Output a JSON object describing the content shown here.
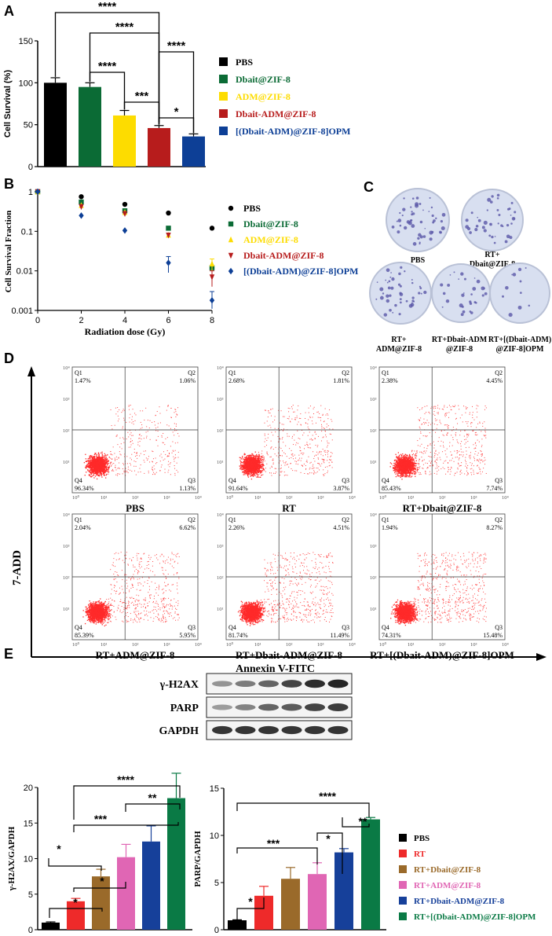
{
  "panels": {
    "a": {
      "label": "A"
    },
    "b": {
      "label": "B"
    },
    "c": {
      "label": "C"
    },
    "d": {
      "label": "D"
    },
    "e": {
      "label": "E"
    }
  },
  "chart_data": [
    {
      "id": "A",
      "type": "bar",
      "title": "",
      "ylabel": "Cell Survival (%)",
      "xlabel": "",
      "ylim": [
        0,
        150
      ],
      "yticks": [
        "0",
        "50",
        "100",
        "150"
      ],
      "categories": [
        "PBS",
        "Dbait@ZIF-8",
        "ADM@ZIF-8",
        "Dbait-ADM@ZIF-8",
        "[(Dbait-ADM)@ZIF-8]OPM"
      ],
      "values": [
        100,
        95,
        61,
        46,
        36
      ],
      "errors": [
        6,
        5,
        6,
        3,
        3
      ],
      "colors": [
        "#000000",
        "#0b6b35",
        "#fddc00",
        "#b71c1c",
        "#0d3f96"
      ],
      "legend": [
        {
          "label": "PBS",
          "color": "#000000",
          "text_color": "#000000"
        },
        {
          "label": "Dbait@ZIF-8",
          "color": "#0b6b35",
          "text_color": "#0b6b35"
        },
        {
          "label": "ADM@ZIF-8",
          "color": "#fddc00",
          "text_color": "#fddc00"
        },
        {
          "label": "Dbait-ADM@ZIF-8",
          "color": "#b71c1c",
          "text_color": "#b71c1c"
        },
        {
          "label": "[(Dbait-ADM)@ZIF-8]OPM",
          "color": "#0d3f96",
          "text_color": "#0d3f96"
        }
      ],
      "significance": [
        {
          "from": 0,
          "to": 3,
          "label": "****",
          "level": 1
        },
        {
          "from": 1,
          "to": 3,
          "label": "****",
          "level": 2
        },
        {
          "from": 3,
          "to": 4,
          "label": "****",
          "level": 3
        },
        {
          "from": 1,
          "to": 2,
          "label": "****",
          "level": 4
        },
        {
          "from": 2,
          "to": 3,
          "label": "***",
          "level": 5
        },
        {
          "from": 3,
          "to": 4,
          "label": "*",
          "level": 6
        }
      ]
    },
    {
      "id": "B",
      "type": "scatter",
      "xlabel": "Radiation dose (Gy)",
      "ylabel": "Cell Survival Fraction",
      "yscale": "log",
      "ylim": [
        0.001,
        1
      ],
      "xlim": [
        0,
        8
      ],
      "xticks": [
        "0",
        "2",
        "4",
        "6",
        "8"
      ],
      "yticks": [
        "1",
        "0.1",
        "0.01",
        "0.001"
      ],
      "x": [
        0,
        2,
        4,
        6,
        8
      ],
      "series": [
        {
          "name": "PBS",
          "color": "#000000",
          "marker": "circle",
          "values": [
            1,
            0.75,
            0.48,
            0.29,
            0.12
          ],
          "err": [
            0,
            0,
            0,
            0,
            0
          ]
        },
        {
          "name": "Dbait@ZIF-8",
          "color": "#0b6b35",
          "marker": "square",
          "values": [
            1,
            0.55,
            0.33,
            0.12,
            0.012
          ],
          "err": [
            0,
            0,
            0,
            0,
            0
          ]
        },
        {
          "name": "ADM@ZIF-8",
          "color": "#fddc00",
          "marker": "triangle",
          "values": [
            1,
            0.45,
            0.3,
            0.08,
            0.015
          ],
          "err": [
            0,
            0,
            0,
            0,
            0.005
          ]
        },
        {
          "name": "Dbait-ADM@ZIF-8",
          "color": "#b71c1c",
          "marker": "tri-down",
          "values": [
            1,
            0.42,
            0.28,
            0.08,
            0.007
          ],
          "err": [
            0,
            0,
            0,
            0,
            0.003
          ]
        },
        {
          "name": "[(Dbait-ADM)@ZIF-8]OPM",
          "color": "#0d3f96",
          "marker": "diamond",
          "values": [
            1,
            0.25,
            0.105,
            0.016,
            0.0018
          ],
          "err": [
            0,
            0,
            0,
            0.007,
            0.0012
          ]
        }
      ]
    },
    {
      "id": "E-left",
      "type": "bar",
      "ylabel": "γ-H2AX/GAPDH",
      "ylim": [
        0,
        20
      ],
      "yticks": [
        "0",
        "5",
        "10",
        "15",
        "20"
      ],
      "categories": [
        "PBS",
        "RT",
        "RT+Dbait@ZIF-8",
        "RT+ADM@ZIF-8",
        "RT+Dbait-ADM@ZIF-8",
        "RT+[(Dbait-ADM)@ZIF-8]OPM"
      ],
      "values": [
        1,
        4,
        7.5,
        10.2,
        12.4,
        18.5
      ],
      "errors": [
        0.1,
        0.4,
        1.0,
        1.8,
        2.2,
        3.5
      ],
      "colors": [
        "#000000",
        "#ee2a2a",
        "#9a6a2a",
        "#e066b4",
        "#16409a",
        "#0a7a45"
      ],
      "significance": [
        {
          "label": "****"
        },
        {
          "label": "**"
        },
        {
          "label": "***"
        },
        {
          "label": "*"
        },
        {
          "label": "*"
        },
        {
          "label": "*"
        }
      ]
    },
    {
      "id": "E-right",
      "type": "bar",
      "ylabel": "PARP/GAPDH",
      "ylim": [
        0,
        15
      ],
      "yticks": [
        "0",
        "5",
        "10",
        "15"
      ],
      "categories": [
        "PBS",
        "RT",
        "RT+Dbait@ZIF-8",
        "RT+ADM@ZIF-8",
        "RT+Dbait-ADM@ZIF-8",
        "RT+[(Dbait-ADM)@ZIF-8]OPM"
      ],
      "values": [
        1,
        3.6,
        5.4,
        5.9,
        8.2,
        11.7
      ],
      "errors": [
        0.05,
        1.0,
        1.2,
        1.2,
        0.4,
        0.2
      ],
      "colors": [
        "#000000",
        "#ee2a2a",
        "#9a6a2a",
        "#e066b4",
        "#16409a",
        "#0a7a45"
      ],
      "legend": [
        {
          "label": "PBS",
          "color": "#000000",
          "text_color": "#000000"
        },
        {
          "label": "RT",
          "color": "#ee2a2a",
          "text_color": "#ee2a2a"
        },
        {
          "label": "RT+Dbait@ZIF-8",
          "color": "#9a6a2a",
          "text_color": "#9a6a2a"
        },
        {
          "label": "RT+ADM@ZIF-8",
          "color": "#e066b4",
          "text_color": "#e066b4"
        },
        {
          "label": "RT+Dbait-ADM@ZIF-8",
          "color": "#16409a",
          "text_color": "#16409a"
        },
        {
          "label": "RT+[(Dbait-ADM)@ZIF-8]OPM",
          "color": "#0a7a45",
          "text_color": "#0a7a45"
        }
      ],
      "significance": [
        {
          "label": "****"
        },
        {
          "label": "*"
        },
        {
          "label": "**"
        },
        {
          "label": "***"
        },
        {
          "label": "*"
        }
      ]
    }
  ],
  "colony": {
    "labels": [
      "PBS",
      "RT+\nDbait@ZIF-8",
      "RT+\nADM@ZIF-8",
      "RT+Dbait-ADM\n@ZIF-8",
      "RT+[(Dbait-ADM)\n@ZIF-8]OPM"
    ],
    "densities": [
      0.55,
      0.45,
      0.5,
      0.35,
      0.12
    ]
  },
  "flow": {
    "y_axis": "7-ADD",
    "x_axis": "Annexin V-FITC",
    "tick_labels": [
      "10⁰",
      "10¹",
      "10²",
      "10³",
      "10⁴"
    ],
    "quadrant_names": [
      "Q1",
      "Q2",
      "Q3",
      "Q4"
    ],
    "plots": [
      {
        "label": "PBS",
        "q1": "1.47%",
        "q2": "1.06%",
        "q3": "1.13%",
        "q4": "96.34%"
      },
      {
        "label": "RT",
        "q1": "2.68%",
        "q2": "1.81%",
        "q3": "3.87%",
        "q4": "91.64%"
      },
      {
        "label": "RT+Dbait@ZIF-8",
        "q1": "2.38%",
        "q2": "4.45%",
        "q3": "7.74%",
        "q4": "85.43%"
      },
      {
        "label": "RT+ADM@ZIF-8",
        "q1": "2.04%",
        "q2": "6.62%",
        "q3": "5.95%",
        "q4": "85.39%"
      },
      {
        "label": "RT+Dbait-ADM@ZIF-8",
        "q1": "2.26%",
        "q2": "4.51%",
        "q3": "11.49%",
        "q4": "81.74%"
      },
      {
        "label": "RT+[(Dbait-ADM)@ZIF-8]OPM",
        "q1": "1.94%",
        "q2": "8.27%",
        "q3": "15.48%",
        "q4": "74.31%"
      }
    ]
  },
  "western": {
    "rows": [
      "γ-H2AX",
      "PARP",
      "GAPDH"
    ],
    "intensities": [
      [
        0.25,
        0.4,
        0.55,
        0.75,
        0.9,
        0.95
      ],
      [
        0.2,
        0.35,
        0.55,
        0.6,
        0.75,
        0.8
      ],
      [
        0.85,
        0.85,
        0.85,
        0.85,
        0.85,
        0.85
      ]
    ]
  }
}
